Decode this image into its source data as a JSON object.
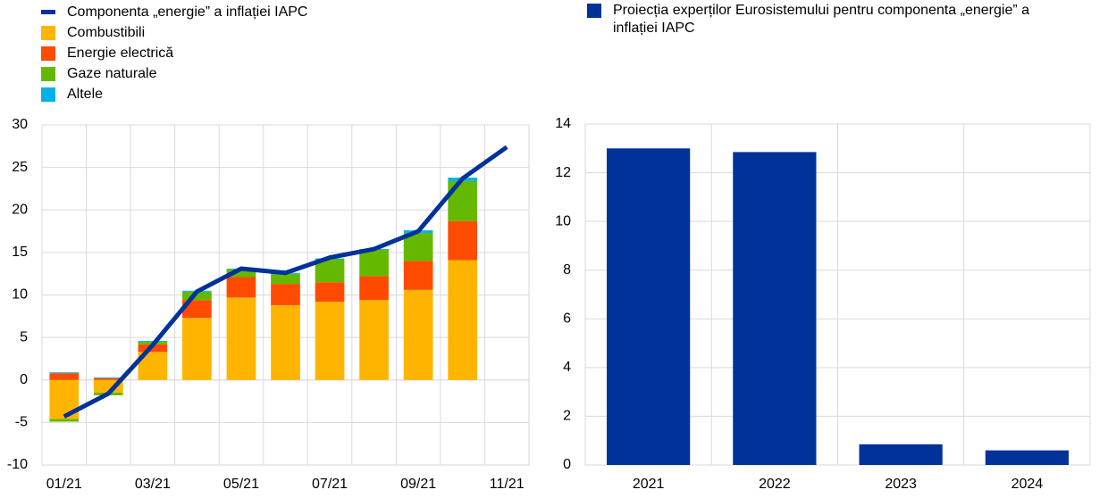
{
  "chart_data": [
    {
      "type": "combo",
      "categories": [
        "01/21",
        null,
        "03/21",
        null,
        "05/21",
        null,
        "07/21",
        null,
        "09/21",
        null,
        "11/21"
      ],
      "series": [
        {
          "name": "Componenta „energie” a inflației IAPC",
          "type": "line",
          "color": "#003299",
          "values": [
            -4.3,
            -1.6,
            4.1,
            10.4,
            13.1,
            12.6,
            14.4,
            15.4,
            17.5,
            23.7,
            27.4
          ]
        },
        {
          "name": "Combustibili",
          "type": "bar",
          "color": "#ffb400",
          "values": [
            -4.6,
            -1.5,
            3.3,
            7.3,
            9.7,
            8.8,
            9.2,
            9.4,
            10.6,
            14.1,
            null
          ]
        },
        {
          "name": "Energie electrică",
          "type": "bar",
          "color": "#ff4b00",
          "values": [
            0.8,
            0.2,
            0.9,
            2.1,
            2.4,
            2.5,
            2.3,
            2.8,
            3.4,
            4.6,
            null
          ]
        },
        {
          "name": "Gaze naturale",
          "type": "bar",
          "color": "#65b800",
          "values": [
            -0.3,
            -0.3,
            0.3,
            1.0,
            0.9,
            1.2,
            2.7,
            3.1,
            3.3,
            4.7,
            null
          ]
        },
        {
          "name": "Altele",
          "type": "bar",
          "color": "#00b1ea",
          "values": [
            0.1,
            0.1,
            0.1,
            0.1,
            0.1,
            0.1,
            0.1,
            0.1,
            0.3,
            0.4,
            null
          ]
        }
      ],
      "ylim": [
        -10,
        30
      ],
      "yticks": [
        -10,
        -5,
        0,
        5,
        10,
        15,
        20,
        25,
        30
      ],
      "grid": true
    },
    {
      "type": "bar",
      "categories": [
        "2021",
        "2022",
        "2023",
        "2024"
      ],
      "series": [
        {
          "name": "Proiecția experților Eurosistemului pentru componenta „energie” a inflației IAPC",
          "color": "#003299",
          "values": [
            13.0,
            12.85,
            0.85,
            0.6
          ]
        }
      ],
      "ylim": [
        0,
        14
      ],
      "yticks": [
        0,
        2,
        4,
        6,
        8,
        10,
        12,
        14
      ],
      "grid": true
    }
  ]
}
